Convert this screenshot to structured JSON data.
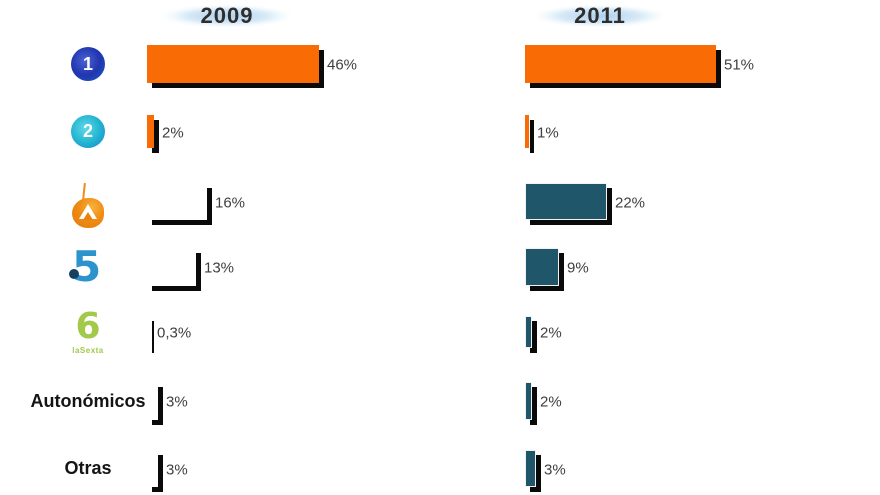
{
  "chart_data": {
    "type": "bar",
    "orientation": "horizontal",
    "title": "",
    "categories": [
      "La 1",
      "La 2",
      "Antena 3",
      "Telecinco",
      "laSexta",
      "Autonómicos",
      "Otras"
    ],
    "category_ids": [
      "la1",
      "la2",
      "antena3",
      "telecinco",
      "lasexta",
      "autonomicos",
      "otras"
    ],
    "category_display": [
      "la1-logo",
      "la2-logo",
      "antena3-logo",
      "telecinco-logo",
      "lasexta-logo",
      "text",
      "text"
    ],
    "series": [
      {
        "name": "2009",
        "values": [
          46,
          2,
          16,
          13,
          0.3,
          3,
          3
        ],
        "labels": [
          "46%",
          "2%",
          "16%",
          "13%",
          "0,3%",
          "3%",
          "3%"
        ],
        "bar_styles": [
          "orange",
          "orange",
          "white",
          "white",
          "white",
          "white",
          "white"
        ]
      },
      {
        "name": "2011",
        "values": [
          51,
          1,
          22,
          9,
          2,
          2,
          3
        ],
        "labels": [
          "51%",
          "1%",
          "22%",
          "9%",
          "2%",
          "2%",
          "3%"
        ],
        "bar_styles": [
          "orange",
          "orange",
          "teal",
          "teal",
          "teal",
          "teal",
          "teal"
        ]
      }
    ],
    "xlim": [
      0,
      100
    ],
    "grid": false,
    "legend_position": "none",
    "value_labels": "outside-right"
  },
  "logos": {
    "la1": {
      "glyph": "1"
    },
    "la2": {
      "glyph": "2"
    },
    "telecinco": {
      "glyph": "5"
    },
    "lasexta": {
      "glyph": "6",
      "wordmark": "laSexta"
    }
  },
  "colors": {
    "bar_orange": "#f96c05",
    "bar_teal": "#20566a",
    "bar_white": "#ffffff",
    "bar_shadow": "#0a0a0a",
    "value_text": "#3f3f3f",
    "header_text": "#2e2e2e",
    "header_glow": "#aecfe8",
    "la1_blue": "#2135ae",
    "la2_cyan": "#25b6d2",
    "antena3_orange": "#ef8c15",
    "telecinco_blue": "#2d93cc",
    "lasexta_green": "#a2c94a"
  }
}
